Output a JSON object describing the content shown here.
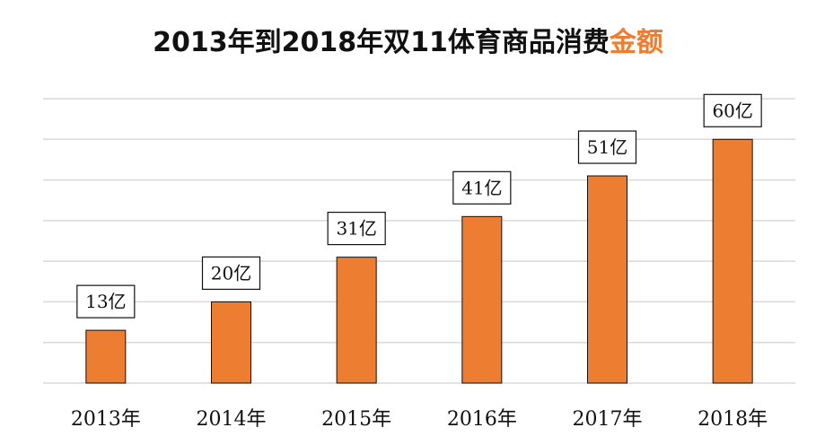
{
  "chart_data": {
    "type": "bar",
    "title": "2013年到2018年双11体育商品消费",
    "title_highlight": "金额",
    "categories": [
      "2013年",
      "2014年",
      "2015年",
      "2016年",
      "2017年",
      "2018年"
    ],
    "values": [
      13,
      20,
      31,
      41,
      51,
      60
    ],
    "data_labels": [
      "13亿",
      "20亿",
      "31亿",
      "41亿",
      "51亿",
      "60亿"
    ],
    "ylim": [
      0,
      70
    ],
    "grid": true,
    "xlabel": "",
    "ylabel": "",
    "colors": {
      "bar": "#ED7D31",
      "grid": "#D9D9D9",
      "highlight": "#ED7D31"
    }
  }
}
